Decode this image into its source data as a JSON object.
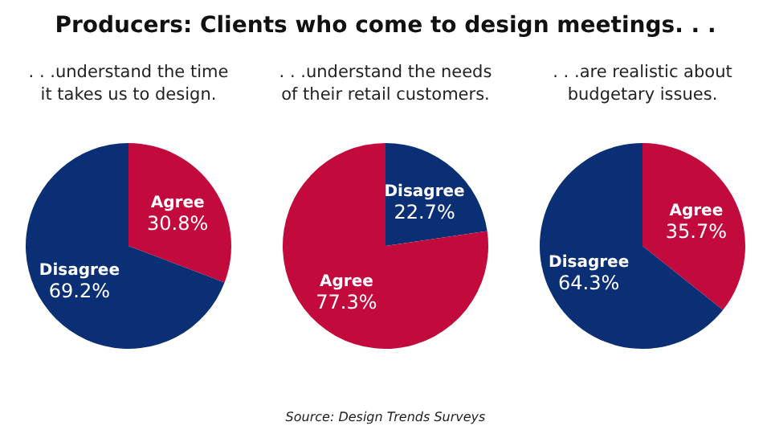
{
  "chart_data": [
    {
      "type": "pie",
      "title": "Producers: Clients who come to design meetings. . .",
      "subtitle": ". . .understand the time it takes us to design.",
      "categories": [
        "Agree",
        "Disagree"
      ],
      "values": [
        30.8,
        69.2
      ],
      "colors": [
        "#c20a3c",
        "#0b2f74"
      ],
      "value_labels": [
        "30.8%",
        "69.2%"
      ]
    },
    {
      "type": "pie",
      "subtitle": ". . .understand the needs of their retail customers.",
      "categories": [
        "Disagree",
        "Agree"
      ],
      "values": [
        22.7,
        77.3
      ],
      "colors": [
        "#0b2f74",
        "#c20a3c"
      ],
      "value_labels": [
        "22.7%",
        "77.3%"
      ],
      "annotations": [
        "Source: Design Trends Surveys"
      ]
    },
    {
      "type": "pie",
      "subtitle": ". . .are realistic about budgetary issues.",
      "categories": [
        "Agree",
        "Disagree"
      ],
      "values": [
        35.7,
        64.3
      ],
      "colors": [
        "#c20a3c",
        "#0b2f74"
      ],
      "value_labels": [
        "35.7%",
        "64.3%"
      ]
    }
  ]
}
